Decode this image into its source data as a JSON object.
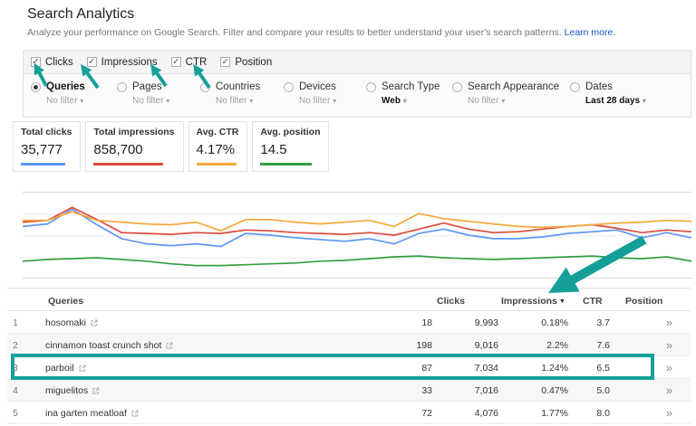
{
  "page": {
    "title": "Search Analytics",
    "subtitle": "Analyze your performance on Google Search. Filter and compare your results to better understand your user's search patterns.",
    "learn_more": "Learn more."
  },
  "icons": {
    "check": "✓",
    "dropdown": "▾",
    "sort_desc": "▼",
    "expand": "»"
  },
  "metric_toggles": [
    {
      "label": "Clicks",
      "checked": true
    },
    {
      "label": "Impressions",
      "checked": true
    },
    {
      "label": "CTR",
      "checked": true
    },
    {
      "label": "Position",
      "checked": true
    }
  ],
  "dimension_tabs": [
    {
      "label": "Queries",
      "selected": true,
      "filter": "No filter"
    },
    {
      "label": "Pages",
      "selected": false,
      "filter": "No filter"
    },
    {
      "label": "Countries",
      "selected": false,
      "filter": "No filter"
    },
    {
      "label": "Devices",
      "selected": false,
      "filter": "No filter"
    },
    {
      "label": "Search Type",
      "selected": false,
      "filter": "Web"
    },
    {
      "label": "Search Appearance",
      "selected": false,
      "filter": "No filter"
    },
    {
      "label": "Dates",
      "selected": false,
      "filter": "Last 28 days"
    }
  ],
  "summary_cards": [
    {
      "label": "Total clicks",
      "value": "35,777",
      "color": "#5e97f6"
    },
    {
      "label": "Total impressions",
      "value": "858,700",
      "color": "#dc4a3d"
    },
    {
      "label": "Avg. CTR",
      "value": "4.17%",
      "color": "#f4a83b"
    },
    {
      "label": "Avg. position",
      "value": "14.5",
      "color": "#34a043"
    }
  ],
  "chart_data": {
    "type": "line",
    "title": "",
    "xlabel": "",
    "ylabel": "",
    "x": {
      "points": 28,
      "range": "Last 28 days",
      "tick_labels_visible": false
    },
    "y": {
      "tick_labels_visible": false,
      "unit": "relative height, % of plot (no axis labels shown in UI)"
    },
    "grid": true,
    "legend_position": "none",
    "series": [
      {
        "name": "Clicks",
        "color": "#5e97f6",
        "values": [
          61,
          64,
          81,
          63,
          47,
          41,
          39,
          41,
          38,
          53,
          51,
          48,
          46,
          44,
          47,
          41,
          53,
          58,
          51,
          47,
          47,
          49,
          53,
          55,
          57,
          48,
          54,
          48
        ]
      },
      {
        "name": "Impressions",
        "color": "#dc4a3d",
        "values": [
          66,
          68,
          83,
          69,
          54,
          53,
          52,
          54,
          53,
          57,
          56,
          54,
          53,
          52,
          54,
          51,
          58,
          65,
          58,
          54,
          55,
          58,
          61,
          63,
          59,
          54,
          57,
          55
        ]
      },
      {
        "name": "CTR",
        "color": "#f4a83b",
        "values": [
          68,
          68,
          78,
          68,
          66,
          64,
          63,
          66,
          56,
          69,
          69,
          66,
          64,
          66,
          68,
          61,
          76,
          70,
          67,
          64,
          61,
          60,
          61,
          63,
          65,
          66,
          68,
          67
        ]
      },
      {
        "name": "Position",
        "color": "#34a043",
        "values": [
          21,
          23,
          24,
          25,
          23,
          21,
          18,
          16,
          16,
          17,
          18,
          19,
          21,
          22,
          24,
          26,
          27,
          25,
          24,
          23,
          24,
          25,
          26,
          27,
          25,
          24,
          26,
          21
        ]
      }
    ]
  },
  "table": {
    "headers": {
      "queries": "Queries",
      "clicks": "Clicks",
      "impressions": "Impressions",
      "ctr": "CTR",
      "position": "Position"
    },
    "sorted_by": "Impressions",
    "sort_direction": "desc",
    "rows": [
      {
        "num": "1",
        "query": "hosomaki",
        "clicks": "18",
        "impressions": "9,993",
        "ctr": "0.18%",
        "position": "3.7"
      },
      {
        "num": "2",
        "query": "cinnamon toast crunch shot",
        "clicks": "198",
        "impressions": "9,016",
        "ctr": "2.2%",
        "position": "7.6"
      },
      {
        "num": "3",
        "query": "parboil",
        "clicks": "87",
        "impressions": "7,034",
        "ctr": "1.24%",
        "position": "6.5",
        "highlighted": true
      },
      {
        "num": "4",
        "query": "miguelitos",
        "clicks": "33",
        "impressions": "7,016",
        "ctr": "0.47%",
        "position": "5.0"
      },
      {
        "num": "5",
        "query": "ina garten meatloaf",
        "clicks": "72",
        "impressions": "4,076",
        "ctr": "1.77%",
        "position": "8.0"
      }
    ]
  },
  "annotation": {
    "color": "#14a099",
    "pointed_at": [
      "Clicks checkbox",
      "Impressions checkbox",
      "CTR checkbox",
      "Position checkbox",
      "Impressions column header"
    ]
  }
}
